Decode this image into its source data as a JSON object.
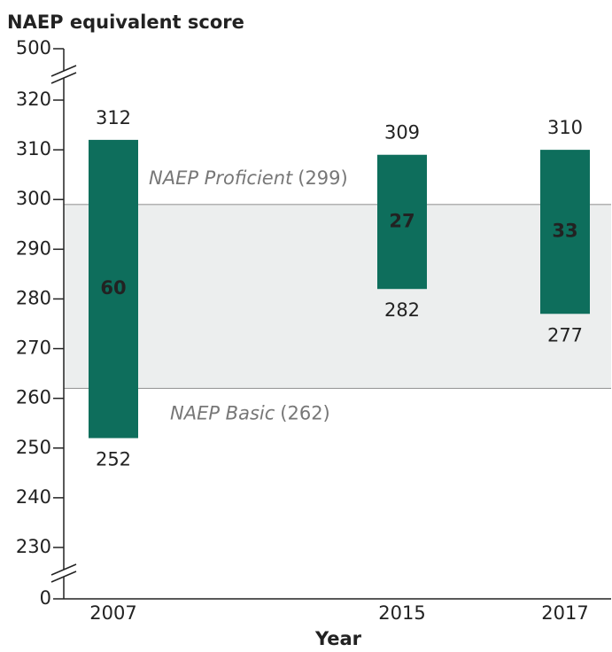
{
  "chart_data": {
    "type": "range_bar",
    "title": "NAEP equivalent score",
    "x_label": "Year",
    "categories": [
      "2007",
      "2015",
      "2017"
    ],
    "series": [
      {
        "name": "low",
        "values": [
          252,
          282,
          277
        ]
      },
      {
        "name": "high",
        "values": [
          312,
          309,
          310
        ]
      }
    ],
    "gaps": [
      60,
      27,
      33
    ],
    "color": "#0e6e5c",
    "label_color": "#1b7a64",
    "ylim": [
      0,
      500
    ],
    "axis_breaks": [
      [
        0,
        230
      ],
      [
        320,
        500
      ]
    ],
    "yticks": [
      0,
      230,
      240,
      250,
      260,
      270,
      280,
      290,
      300,
      310,
      320,
      500
    ],
    "reference_band": {
      "color": "#eceeee"
    },
    "reference_lines": [
      {
        "label": "NAEP Proficient",
        "value": 299,
        "value_label": "(299)"
      },
      {
        "label": "NAEP Basic",
        "value": 262,
        "value_label": "(262)"
      }
    ]
  }
}
